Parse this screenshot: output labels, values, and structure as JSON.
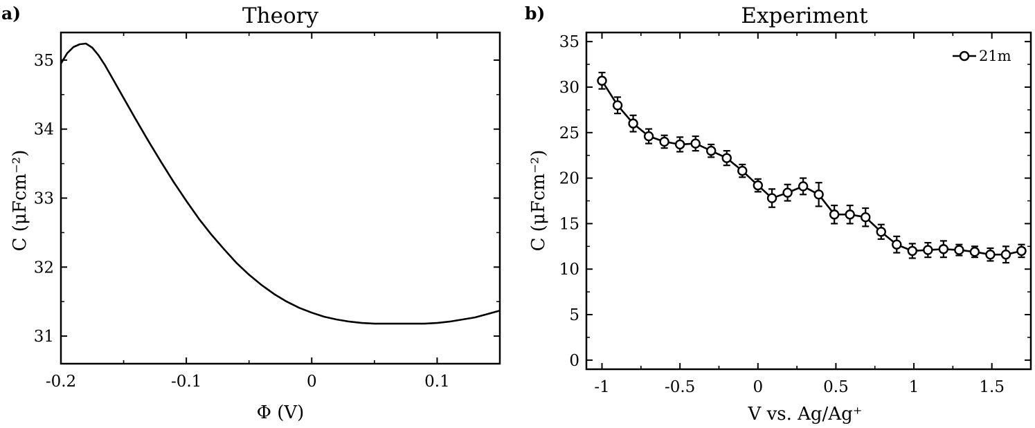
{
  "chart_data": [
    {
      "panel": "a)",
      "type": "line",
      "title": "Theory",
      "xlabel": "Φ (V)",
      "ylabel": "C (μFcm⁻²)",
      "xlim": [
        -0.2,
        0.15
      ],
      "ylim": [
        30.6,
        35.4
      ],
      "xticks": [
        -0.2,
        -0.1,
        0,
        0.1
      ],
      "xtick_labels": [
        "-0.2",
        "-0.1",
        "0",
        "0.1"
      ],
      "yticks": [
        31,
        32,
        33,
        34,
        35
      ],
      "ytick_labels": [
        "31",
        "32",
        "33",
        "34",
        "35"
      ],
      "grid": false,
      "series": [
        {
          "x": [
            -0.2,
            -0.195,
            -0.19,
            -0.185,
            -0.18,
            -0.175,
            -0.17,
            -0.165,
            -0.16,
            -0.15,
            -0.14,
            -0.13,
            -0.12,
            -0.11,
            -0.1,
            -0.09,
            -0.08,
            -0.07,
            -0.06,
            -0.05,
            -0.04,
            -0.03,
            -0.02,
            -0.01,
            0.0,
            0.01,
            0.02,
            0.03,
            0.04,
            0.05,
            0.06,
            0.07,
            0.08,
            0.09,
            0.1,
            0.11,
            0.12,
            0.13,
            0.14,
            0.15
          ],
          "y": [
            34.95,
            35.1,
            35.19,
            35.23,
            35.24,
            35.18,
            35.07,
            34.93,
            34.77,
            34.45,
            34.13,
            33.82,
            33.52,
            33.23,
            32.96,
            32.7,
            32.47,
            32.26,
            32.06,
            31.89,
            31.74,
            31.61,
            31.5,
            31.41,
            31.34,
            31.28,
            31.24,
            31.21,
            31.19,
            31.18,
            31.18,
            31.18,
            31.18,
            31.18,
            31.19,
            31.21,
            31.24,
            31.27,
            31.32,
            31.37
          ]
        }
      ]
    },
    {
      "panel": "b)",
      "type": "line",
      "title": "Experiment",
      "xlabel": "V vs. Ag/Ag⁺",
      "ylabel": "C (μFcm⁻²)",
      "xlim": [
        -1.1,
        1.75
      ],
      "ylim": [
        -1,
        36
      ],
      "xticks": [
        -1,
        -0.5,
        0,
        0.5,
        1,
        1.5
      ],
      "xtick_labels": [
        "-1",
        "-0.5",
        "0",
        "0.5",
        "1",
        "1.5"
      ],
      "yticks": [
        0,
        5,
        10,
        15,
        20,
        25,
        30,
        35
      ],
      "ytick_labels": [
        "0",
        "5",
        "10",
        "15",
        "20",
        "25",
        "30",
        "35"
      ],
      "grid": false,
      "legend_position": "top-right",
      "series": [
        {
          "name": "21m",
          "marker": "open-circle",
          "x": [
            -1.0,
            -0.9,
            -0.8,
            -0.7,
            -0.6,
            -0.5,
            -0.4,
            -0.3,
            -0.2,
            -0.1,
            0.0,
            0.09,
            0.19,
            0.29,
            0.39,
            0.49,
            0.59,
            0.69,
            0.79,
            0.89,
            0.99,
            1.09,
            1.19,
            1.29,
            1.39,
            1.49,
            1.59,
            1.69
          ],
          "y": [
            30.7,
            28.0,
            26.0,
            24.6,
            24.0,
            23.7,
            23.8,
            23.0,
            22.2,
            20.8,
            19.2,
            17.8,
            18.4,
            19.1,
            18.2,
            16.0,
            16.0,
            15.7,
            14.1,
            12.7,
            12.0,
            12.1,
            12.2,
            12.1,
            11.9,
            11.6,
            11.6,
            12.0
          ],
          "yerr": [
            0.9,
            0.9,
            0.9,
            0.8,
            0.7,
            0.8,
            0.8,
            0.7,
            0.8,
            0.7,
            0.7,
            1.0,
            0.9,
            0.9,
            1.3,
            1.0,
            1.0,
            1.0,
            0.8,
            0.9,
            0.8,
            0.8,
            0.9,
            0.6,
            0.6,
            0.7,
            0.9,
            0.7
          ]
        }
      ]
    }
  ]
}
